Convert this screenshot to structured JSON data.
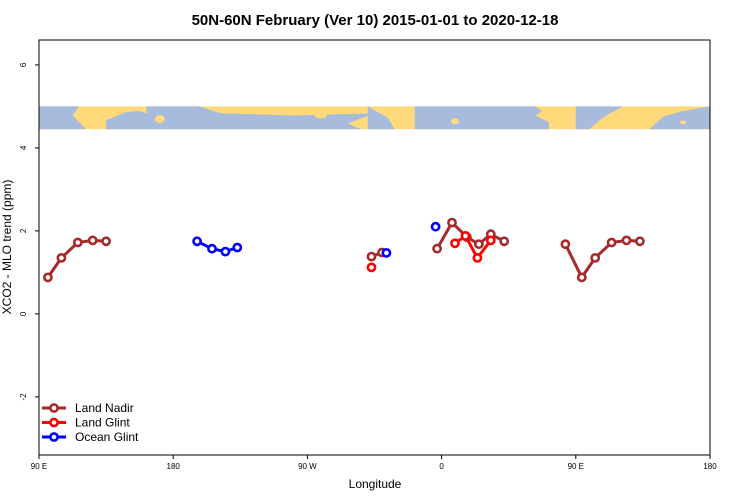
{
  "chart_data": {
    "type": "line",
    "title": "50N-60N February (Ver 10)   2015-01-01 to 2020-12-18",
    "xlabel": "Longitude",
    "ylabel": "XCO2 - MLO trend (ppm)",
    "xlim": [
      90,
      540
    ],
    "ylim": [
      -3.4,
      6.6
    ],
    "x_ticks": [
      {
        "value": 90,
        "label": "90 E"
      },
      {
        "value": 180,
        "label": "180"
      },
      {
        "value": 270,
        "label": "90 W"
      },
      {
        "value": 360,
        "label": "0"
      },
      {
        "value": 450,
        "label": "90 E"
      },
      {
        "value": 540,
        "label": "180"
      }
    ],
    "y_ticks": [
      {
        "value": -2,
        "label": "-2"
      },
      {
        "value": 0,
        "label": "0"
      },
      {
        "value": 2,
        "label": "2"
      },
      {
        "value": 4,
        "label": "4"
      },
      {
        "value": 6,
        "label": "6"
      }
    ],
    "map_strip": {
      "y_range": [
        4.45,
        5.0
      ],
      "land_color": "#FFD97A",
      "ocean_color": "#A7BBDC"
    },
    "legend_position": "bottom-left",
    "series": [
      {
        "name": "Land Nadir",
        "color": "#A52A2A",
        "segments": [
          [
            [
              96,
              0.88
            ],
            [
              105,
              1.35
            ],
            [
              116,
              1.72
            ],
            [
              126,
              1.77
            ],
            [
              135,
              1.75
            ]
          ],
          [
            [
              313,
              1.38
            ],
            [
              320,
              1.48
            ]
          ],
          [
            [
              357,
              1.57
            ],
            [
              367,
              2.2
            ],
            [
              377,
              1.85
            ],
            [
              385,
              1.68
            ],
            [
              393,
              1.92
            ],
            [
              402,
              1.75
            ]
          ],
          [
            [
              443,
              1.68
            ],
            [
              454,
              0.88
            ],
            [
              463,
              1.35
            ],
            [
              474,
              1.72
            ],
            [
              484,
              1.77
            ],
            [
              493,
              1.75
            ]
          ]
        ]
      },
      {
        "name": "Land Glint",
        "color": "#FF0000",
        "segments": [
          [
            [
              313,
              1.12
            ]
          ],
          [
            [
              369,
              1.7
            ],
            [
              376,
              1.88
            ],
            [
              384,
              1.35
            ],
            [
              393,
              1.77
            ]
          ]
        ]
      },
      {
        "name": "Ocean Glint",
        "color": "#0000FF",
        "segments": [
          [
            [
              196,
              1.75
            ],
            [
              206,
              1.57
            ],
            [
              215,
              1.5
            ],
            [
              223,
              1.6
            ]
          ],
          [
            [
              323,
              1.47
            ]
          ],
          [
            [
              356,
              2.1
            ]
          ]
        ]
      }
    ]
  }
}
